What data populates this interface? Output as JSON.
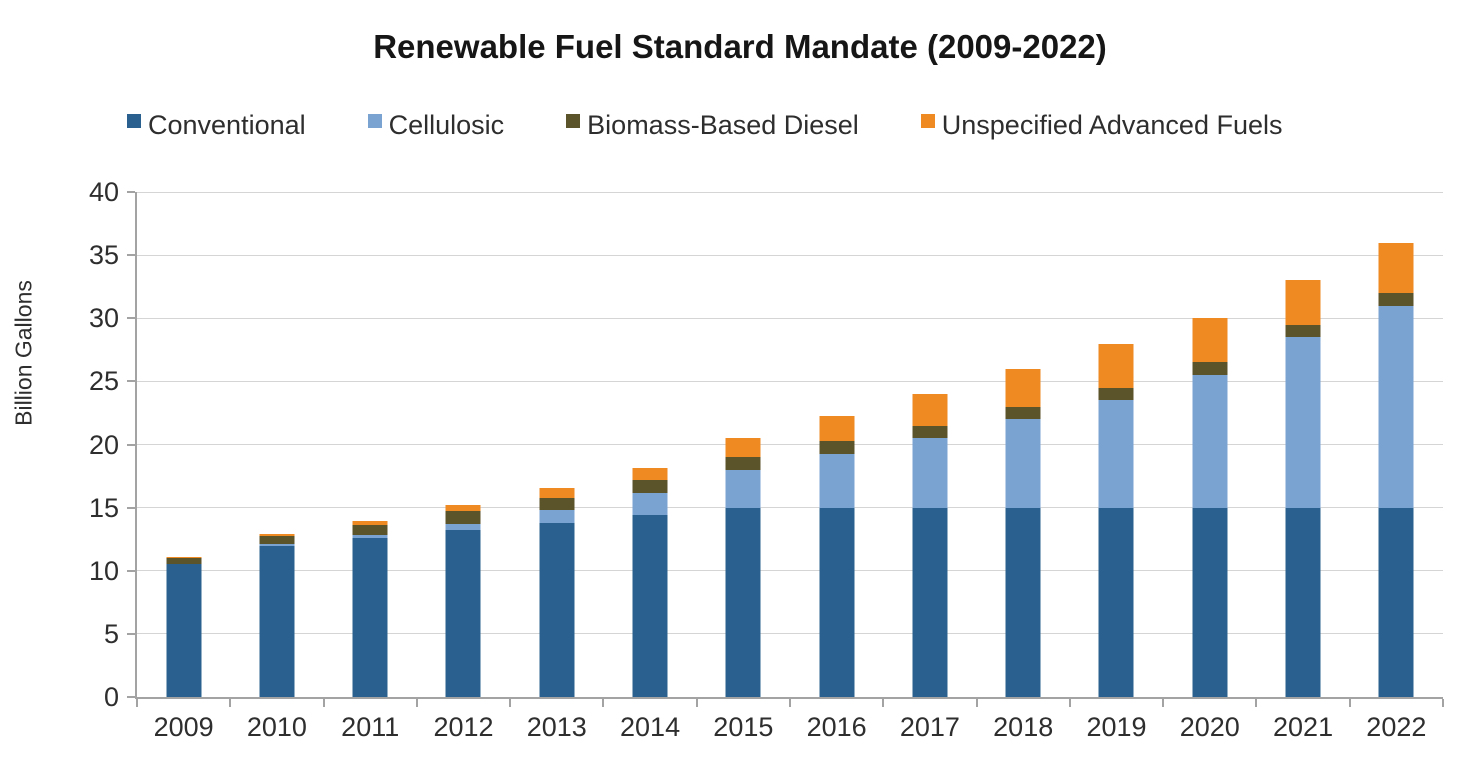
{
  "chart_data": {
    "type": "bar",
    "stacked": true,
    "title": "Renewable Fuel Standard Mandate (2009-2022)",
    "ylabel": "Billion Gallons",
    "xlabel": "",
    "ylim": [
      0,
      40
    ],
    "yticks": [
      0,
      5,
      10,
      15,
      20,
      25,
      30,
      35,
      40
    ],
    "grid": true,
    "legend_position": "top",
    "categories": [
      "2009",
      "2010",
      "2011",
      "2012",
      "2013",
      "2014",
      "2015",
      "2016",
      "2017",
      "2018",
      "2019",
      "2020",
      "2021",
      "2022"
    ],
    "series": [
      {
        "name": "Conventional",
        "color": "#29608F",
        "values": [
          10.5,
          12.0,
          12.6,
          13.2,
          13.8,
          14.4,
          15.0,
          15.0,
          15.0,
          15.0,
          15.0,
          15.0,
          15.0,
          15.0
        ]
      },
      {
        "name": "Cellulosic",
        "color": "#7BA3D1",
        "values": [
          0,
          0.1,
          0.25,
          0.5,
          1.0,
          1.75,
          3.0,
          4.25,
          5.5,
          7.0,
          8.5,
          10.5,
          13.5,
          16.0
        ]
      },
      {
        "name": "Biomass-Based Diesel",
        "color": "#5B5329",
        "values": [
          0.5,
          0.65,
          0.8,
          1.0,
          1.0,
          1.0,
          1.0,
          1.0,
          1.0,
          1.0,
          1.0,
          1.0,
          1.0,
          1.0
        ]
      },
      {
        "name": "Unspecified Advanced Fuels",
        "color": "#EE8A21",
        "values": [
          0.1,
          0.2,
          0.3,
          0.5,
          0.75,
          1.0,
          1.5,
          2.0,
          2.5,
          3.0,
          3.5,
          3.5,
          3.5,
          4.0
        ]
      }
    ],
    "totals": [
      11.1,
      12.95,
      13.95,
      15.2,
      16.55,
      18.15,
      20.5,
      22.25,
      24.0,
      26.0,
      28.0,
      30.0,
      33.0,
      36.0
    ],
    "colors": {
      "axis": "#a3a3a3",
      "gridline": "#d5d5d5",
      "text": "#2e2e2e",
      "title": "#161616",
      "background": "#ffffff"
    }
  }
}
